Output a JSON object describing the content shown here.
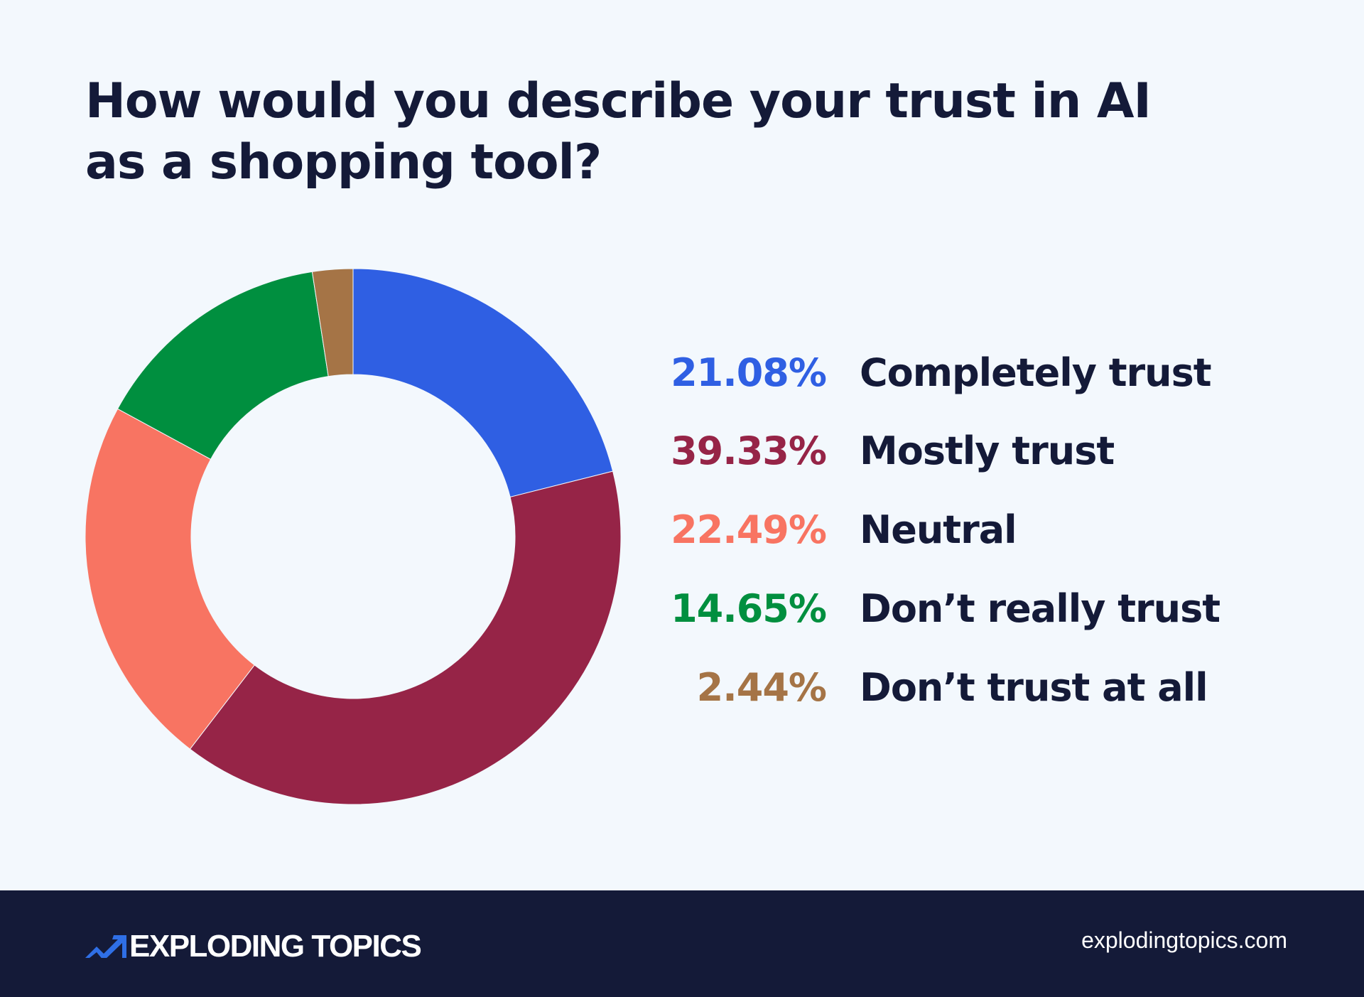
{
  "chart_data": {
    "type": "pie",
    "variant": "donut",
    "title": "How would you describe your trust in AI as a shopping tool?",
    "legend_placement": "right",
    "categories": [
      "Completely trust",
      "Mostly trust",
      "Neutral",
      "Don’t really trust",
      "Don’t trust at all"
    ],
    "values": [
      21.08,
      39.33,
      22.49,
      14.65,
      2.44
    ],
    "value_labels": [
      "21.08%",
      "39.33%",
      "22.49%",
      "14.65%",
      "2.44%"
    ],
    "colors": [
      "#2f5fe3",
      "#962447",
      "#f87462",
      "#008f3f",
      "#a57446"
    ]
  },
  "footer": {
    "brand": "EXPLODING TOPICS",
    "url": "explodingtopics.com",
    "logo_icon": "trend-arrow-icon",
    "logo_color": "#2f6fe6",
    "background": "#141a38"
  }
}
